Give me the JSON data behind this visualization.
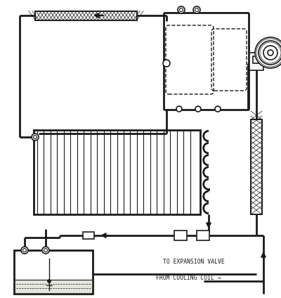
{
  "bg_color": "#f0ede8",
  "line_color": "#1a1a1a",
  "label1": "TO EXPANSION VALVE",
  "label2": "FROM COOLING COIL",
  "figsize": [
    4.0,
    4.24
  ],
  "dpi": 100
}
